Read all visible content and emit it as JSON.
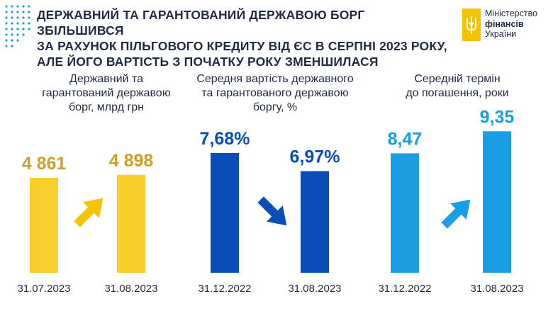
{
  "header": {
    "title_lines": [
      "ДЕРЖАВНИЙ ТА ГАРАНТОВАНИЙ ДЕРЖАВОЮ БОРГ ЗБІЛЬШИВСЯ",
      "ЗА РАХУНОК ПІЛЬГОВОГО КРЕДИТУ ВІД ЄС В СЕРПНІ 2023 РОКУ,",
      "АЛЕ ЙОГО ВАРТІСТЬ З ПОЧАТКУ РОКУ ЗМЕНШИЛАСЯ"
    ]
  },
  "logo": {
    "line1": "Міністерство",
    "line2": "фінансів",
    "line3": "України",
    "mark_color": "#f5c400"
  },
  "chart_data": [
    {
      "type": "bar",
      "title_lines": [
        "Державний та",
        "гарантований державою",
        "борг, млрд грн"
      ],
      "categories": [
        "31.07.2023",
        "31.08.2023"
      ],
      "values": [
        4861,
        4898
      ],
      "value_labels": [
        "4 861",
        "4 898"
      ],
      "color": "#f9cd2c",
      "label_color": "#c9a227",
      "arrow": "up",
      "arrow_color": "#f5c400"
    },
    {
      "type": "bar",
      "title_lines": [
        "Середня вартість державного",
        "та гарантованого державою",
        "боргу, %"
      ],
      "categories": [
        "31.12.2022",
        "31.08.2023"
      ],
      "values": [
        7.68,
        6.97
      ],
      "value_labels": [
        "7,68%",
        "6,97%"
      ],
      "color": "#0b4db8",
      "label_color": "#0b4db8",
      "arrow": "down",
      "arrow_color": "#0b4db8"
    },
    {
      "type": "bar",
      "title_lines": [
        "Середній термін",
        "до погашення, роки"
      ],
      "categories": [
        "31.12.2022",
        "31.08.2023"
      ],
      "values": [
        8.47,
        9.35
      ],
      "value_labels": [
        "8,47",
        "9,35"
      ],
      "color": "#1a9ee3",
      "label_color": "#1a9ee3",
      "arrow": "up",
      "arrow_color": "#1a9ee3"
    }
  ]
}
